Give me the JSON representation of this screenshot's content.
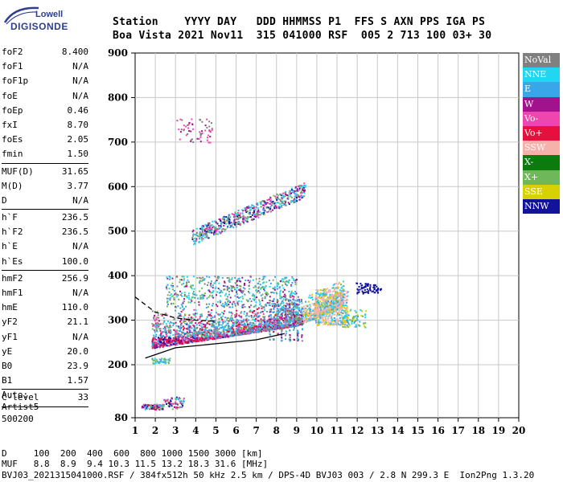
{
  "logo": {
    "line1": "Lowell",
    "line2": "DIGISONDE"
  },
  "header": {
    "labels": "Station    YYYY DAY   DDD HHMMSS P1  FFS S AXN PPS IGA PS",
    "values": "Boa Vista 2021 Nov11  315 041000 RSF  005 2 713 100 03+ 30"
  },
  "params": {
    "g1": [
      {
        "k": "foF2",
        "v": "8.400"
      },
      {
        "k": "foF1",
        "v": "N/A"
      },
      {
        "k": "foF1p",
        "v": "N/A"
      },
      {
        "k": "foE",
        "v": "N/A"
      },
      {
        "k": "foEp",
        "v": "0.46"
      },
      {
        "k": "fxI",
        "v": "8.70"
      },
      {
        "k": "foEs",
        "v": "2.05"
      },
      {
        "k": "fmin",
        "v": "1.50"
      }
    ],
    "g2": [
      {
        "k": "MUF(D)",
        "v": "31.65"
      },
      {
        "k": "M(D)",
        "v": "3.77"
      },
      {
        "k": "D",
        "v": "N/A"
      }
    ],
    "g3": [
      {
        "k": "h`F",
        "v": "236.5"
      },
      {
        "k": "h`F2",
        "v": "236.5"
      },
      {
        "k": "h`E",
        "v": "N/A"
      },
      {
        "k": "h`Es",
        "v": "100.0"
      }
    ],
    "g4": [
      {
        "k": "hmF2",
        "v": "256.9"
      },
      {
        "k": "hmF1",
        "v": "N/A"
      },
      {
        "k": "hmE",
        "v": "110.0"
      },
      {
        "k": "yF2",
        "v": "21.1"
      },
      {
        "k": "yF1",
        "v": "N/A"
      },
      {
        "k": "yE",
        "v": "20.0"
      },
      {
        "k": "B0",
        "v": "23.9"
      },
      {
        "k": "B1",
        "v": "1.57"
      }
    ],
    "g5": [
      {
        "k": "C-level",
        "v": "33"
      }
    ]
  },
  "auto": {
    "line1": "Auto:",
    "line2": "Artist5",
    "line3": "500200"
  },
  "legend": [
    {
      "label": "NoVal",
      "color": "#808080"
    },
    {
      "label": "NNE",
      "color": "#22d6f2"
    },
    {
      "label": "E",
      "color": "#3aa6ea"
    },
    {
      "label": "W",
      "color": "#a3128d"
    },
    {
      "label": "Vo-",
      "color": "#ef45ae"
    },
    {
      "label": "Vo+",
      "color": "#e5103e"
    },
    {
      "label": "SSW",
      "color": "#f4b2aa"
    },
    {
      "label": "X-",
      "color": "#0d7a0d"
    },
    {
      "label": "X+",
      "color": "#6fb85a"
    },
    {
      "label": "SSE",
      "color": "#d6d100"
    },
    {
      "label": "NNW",
      "color": "#12129a"
    }
  ],
  "footer": {
    "line1": "D     100  200  400  600  800 1000 1500 3000 [km]",
    "line2": "MUF   8.8  8.9  9.4 10.3 11.5 13.2 18.3 31.6 [MHz]",
    "line3": "BVJ03_2021315041000.RSF / 384fx512h 50 kHz 2.5 km / DPS-4D BVJ03 003 / 2.8 N 299.3 E  Ion2Png 1.3.20"
  },
  "chart_data": {
    "type": "scatter",
    "title": "",
    "xlabel": "",
    "ylabel": "",
    "x_ticks": [
      "1",
      "2",
      "3",
      "4",
      "5",
      "6",
      "7",
      "8",
      "9",
      "10",
      "11",
      "12",
      "13",
      "14",
      "15",
      "16",
      "17",
      "18",
      "19",
      "20"
    ],
    "y_ticks": [
      "80",
      "200",
      "300",
      "400",
      "500",
      "600",
      "700",
      "800",
      "900"
    ],
    "xlim": [
      1,
      20
    ],
    "y_piecewise": [
      [
        80,
        200
      ],
      [
        200,
        900
      ]
    ],
    "grid": true,
    "legend_position": "right",
    "traces": [
      {
        "name": "Es",
        "x_range": [
          1.3,
          3.4
        ],
        "y_range": [
          100,
          115
        ]
      },
      {
        "name": "F trace",
        "x_range": [
          1.8,
          11.5
        ],
        "y_range": [
          235,
          330
        ]
      },
      {
        "name": "2F multiple",
        "x_range": [
          3.8,
          9.4
        ],
        "y_range": [
          470,
          590
        ]
      },
      {
        "name": "upper spread",
        "x_range": [
          3.0,
          4.8
        ],
        "y_range": [
          700,
          755
        ]
      },
      {
        "name": "NNW echoes",
        "x_range": [
          11.9,
          13.2
        ],
        "y_range": [
          360,
          385
        ]
      }
    ],
    "profile_lines": [
      {
        "name": "true height profile",
        "x": [
          1.5,
          3,
          5,
          7,
          8.4
        ],
        "y": [
          215,
          238,
          247,
          256,
          270
        ]
      },
      {
        "name": "fitted profile",
        "x": [
          1.0,
          2,
          3,
          4,
          5
        ],
        "y": [
          352,
          318,
          305,
          300,
          298
        ]
      }
    ]
  }
}
